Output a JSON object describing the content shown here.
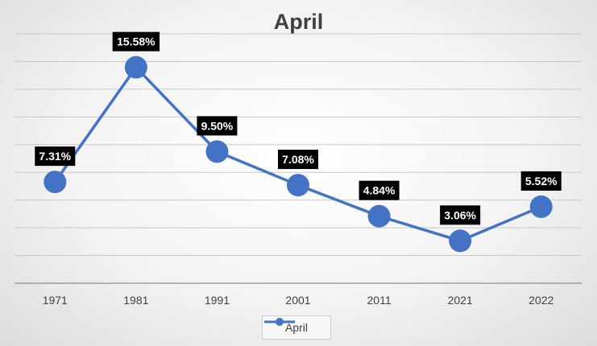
{
  "chart_data": {
    "type": "line",
    "title": "April",
    "categories": [
      "1971",
      "1981",
      "1991",
      "2001",
      "2011",
      "2021",
      "2022"
    ],
    "series": [
      {
        "name": "April",
        "values": [
          7.31,
          15.58,
          9.5,
          7.08,
          4.84,
          3.06,
          5.52
        ],
        "labels": [
          "7.31%",
          "15.58%",
          "9.50%",
          "7.08%",
          "4.84%",
          "3.06%",
          "5.52%"
        ],
        "color": "#4472c4"
      }
    ],
    "xlabel": "",
    "ylabel": "",
    "ylim": [
      0,
      18
    ],
    "grid": true,
    "legend_position": "bottom"
  }
}
